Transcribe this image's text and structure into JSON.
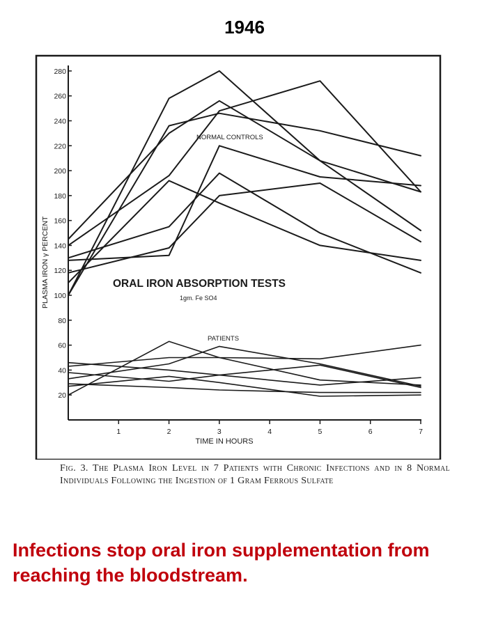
{
  "header": {
    "year": "1946"
  },
  "takeaway": {
    "text": "Infections stop oral iron supplementation from reaching the bloodstream.",
    "color": "#c0000c"
  },
  "caption": {
    "text": "Fig. 3. The Plasma Iron Level in 7 Patients with Chronic Infections and in 8 Normal Individuals Following the Ingestion of 1 Gram Ferrous Sulfate"
  },
  "chart_data": {
    "type": "line",
    "title": "ORAL IRON ABSORPTION TESTS",
    "subtitle": "1gm. Fe SO4",
    "xlabel": "TIME IN HOURS",
    "ylabel": "PLASMA IRON γ PERCENT",
    "xlim": [
      0,
      7
    ],
    "ylim": [
      0,
      290
    ],
    "x": [
      0,
      2,
      3,
      5,
      7
    ],
    "x_ticks": [
      1,
      2,
      3,
      4,
      5,
      6,
      7
    ],
    "y_ticks": [
      20,
      40,
      60,
      80,
      100,
      120,
      140,
      160,
      180,
      200,
      220,
      240,
      260,
      280
    ],
    "grid": false,
    "group_labels": {
      "controls": "NORMAL CONTROLS",
      "patients": "PATIENTS"
    },
    "ink_color": "#1a1a1a",
    "series": [
      {
        "group": "controls",
        "values": [
          100,
          258,
          280,
          208,
          183
        ]
      },
      {
        "group": "controls",
        "values": [
          145,
          230,
          256,
          208,
          152
        ]
      },
      {
        "group": "controls",
        "values": [
          100,
          236,
          246,
          232,
          212
        ]
      },
      {
        "group": "controls",
        "values": [
          140,
          196,
          248,
          272,
          183
        ]
      },
      {
        "group": "controls",
        "values": [
          128,
          132,
          220,
          195,
          188
        ]
      },
      {
        "group": "controls",
        "values": [
          130,
          155,
          198,
          150,
          118
        ]
      },
      {
        "group": "controls",
        "values": [
          118,
          138,
          180,
          190,
          143
        ]
      },
      {
        "group": "controls",
        "values": [
          110,
          192,
          174,
          140,
          128
        ]
      },
      {
        "group": "patients",
        "values": [
          20,
          63,
          50,
          49,
          60
        ]
      },
      {
        "group": "patients",
        "values": [
          33,
          45,
          59,
          45,
          27
        ]
      },
      {
        "group": "patients",
        "values": [
          43,
          50,
          50,
          32,
          28
        ]
      },
      {
        "group": "patients",
        "values": [
          46,
          40,
          36,
          28,
          34
        ]
      },
      {
        "group": "patients",
        "values": [
          27,
          35,
          30,
          19,
          20
        ]
      },
      {
        "group": "patients",
        "values": [
          29,
          26,
          24,
          22,
          22
        ]
      },
      {
        "group": "patients",
        "values": [
          38,
          31,
          36,
          44,
          26
        ]
      }
    ]
  }
}
